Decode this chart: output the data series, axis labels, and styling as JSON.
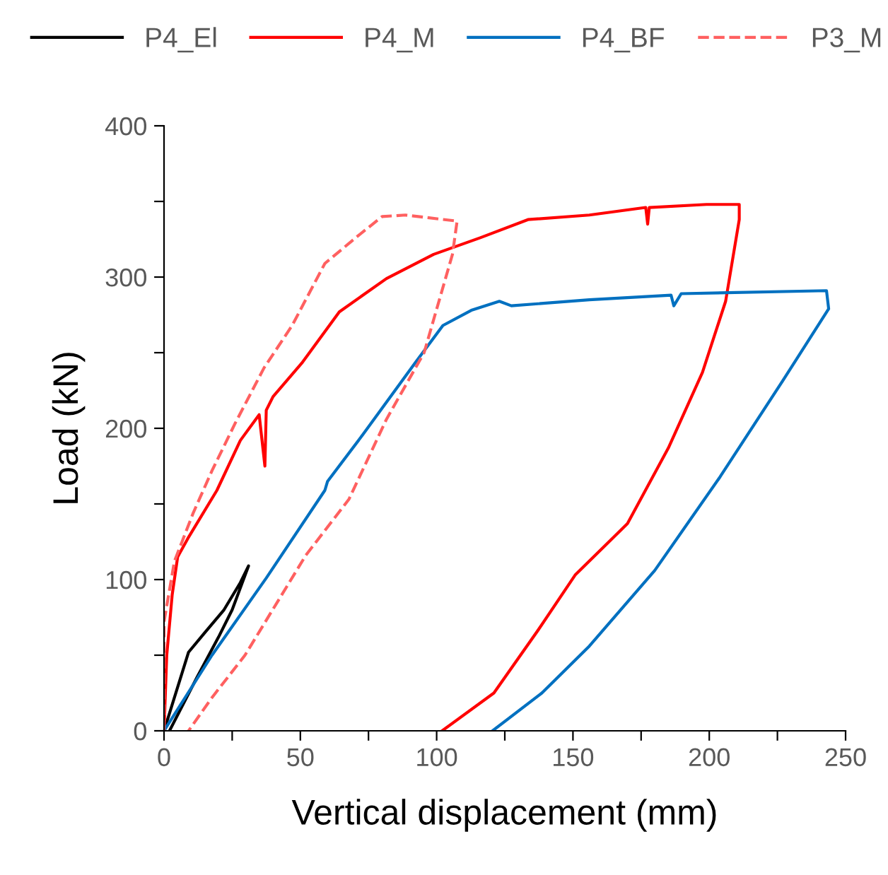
{
  "chart_data": {
    "type": "line",
    "xlabel": "Vertical displacement (mm)",
    "ylabel": "Load (kN)",
    "xlim": [
      0,
      250
    ],
    "ylim": [
      0,
      400
    ],
    "xticks": [
      0,
      {
        "value": 25,
        "label": null
      },
      50,
      {
        "value": 75,
        "label": null
      },
      100,
      {
        "value": 125,
        "label": null
      },
      150,
      {
        "value": 175,
        "label": null
      },
      200,
      {
        "value": 225,
        "label": null
      },
      250
    ],
    "yticks": [
      0,
      {
        "value": 50,
        "label": null
      },
      100,
      {
        "value": 150,
        "label": null
      },
      200,
      {
        "value": 250,
        "label": null
      },
      300,
      {
        "value": 350,
        "label": null
      },
      400
    ],
    "grid": false,
    "legend": "top",
    "marker": "none",
    "series": [
      {
        "name": "P4_El",
        "color": "#000000",
        "line_style": "solid",
        "x": [
          0,
          9,
          15,
          22,
          28,
          31,
          25,
          20,
          12,
          2
        ],
        "values": [
          0,
          52,
          65,
          80,
          98,
          109,
          80,
          62,
          35,
          0
        ]
      },
      {
        "name": "P4_M",
        "color": "#ff0000",
        "line_style": "solid",
        "x": [
          0,
          1,
          3,
          5,
          9,
          19.4,
          28,
          34.9,
          37,
          37.5,
          40,
          50.5,
          64.3,
          81.6,
          98.9,
          116,
          133.5,
          156,
          176.7,
          177.4,
          178,
          199,
          211,
          211,
          206,
          197.5,
          185,
          170,
          150.8,
          137,
          121,
          102
        ],
        "values": [
          0,
          50,
          90,
          115,
          128,
          159,
          192,
          209,
          175,
          212,
          221,
          243,
          277,
          299,
          315,
          326,
          338,
          341,
          346,
          335,
          346,
          348,
          348,
          338,
          284,
          237,
          187,
          137,
          103,
          66,
          25,
          0
        ]
      },
      {
        "name": "P4_BF",
        "color": "#0070c0",
        "line_style": "solid",
        "x": [
          0,
          17.6,
          37.5,
          59,
          60,
          73,
          92,
          102.3,
          112.7,
          123,
          127.4,
          156,
          186,
          187,
          189.7,
          243,
          243.8,
          226.8,
          204,
          180,
          156,
          138.6,
          120.5
        ],
        "values": [
          0,
          50,
          101,
          159,
          165,
          196,
          243,
          268,
          278,
          284,
          281,
          285,
          288,
          281,
          289,
          291,
          279,
          231,
          168,
          106,
          56,
          25,
          0
        ]
      },
      {
        "name": "P3_M",
        "color": "#ff6060",
        "line_style": "dashed",
        "x": [
          0,
          0,
          3.8,
          10.7,
          17.6,
          26,
          36.7,
          47,
          59,
          71,
          80,
          88.5,
          107.5,
          105.8,
          95.4,
          81.6,
          67.8,
          52,
          29.7,
          17.6,
          9
        ],
        "values": [
          0,
          72,
          112,
          144,
          172,
          203,
          240,
          268,
          309,
          327,
          340,
          341,
          337,
          315,
          250,
          206,
          153,
          116,
          50,
          22,
          0
        ]
      }
    ]
  }
}
